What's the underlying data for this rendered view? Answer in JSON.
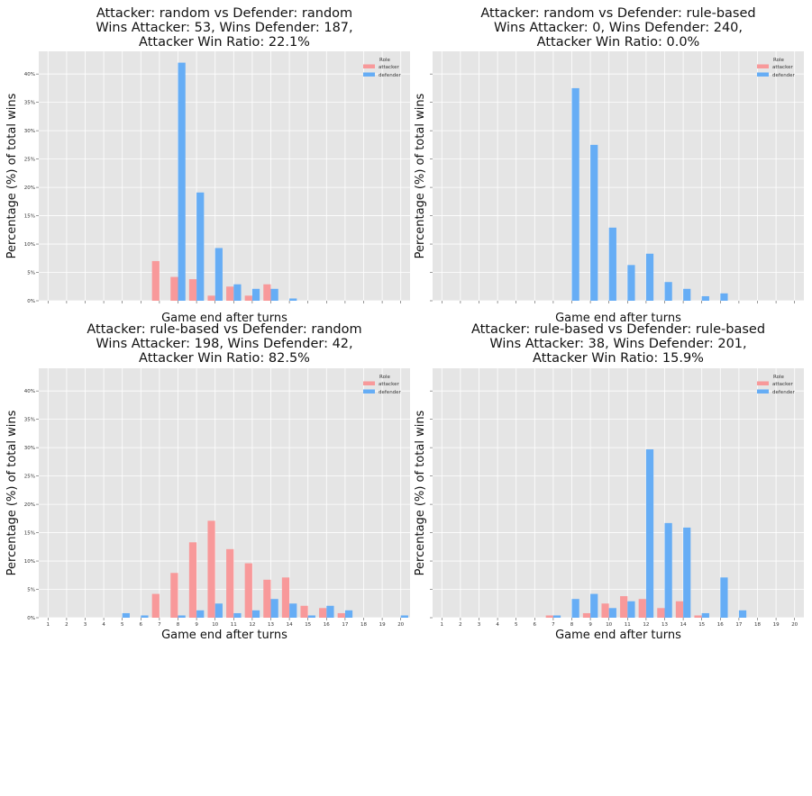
{
  "colors": {
    "attacker": "#f8999a",
    "defender": "#66adf5",
    "plot_bg": "#e5e5e5",
    "grid": "#ffffff"
  },
  "chart_data": [
    {
      "type": "bar",
      "title_lines": [
        "Attacker: random vs Defender: random",
        "Wins Attacker: 53, Wins Defender: 187,",
        "Attacker Win Ratio: 22.1%"
      ],
      "xlabel": "Game end after turns",
      "ylabel": "Percentage (%) of total wins",
      "ylim": [
        0,
        44
      ],
      "yticks": [
        "0%",
        "5%",
        "10%",
        "15%",
        "20%",
        "25%",
        "30%",
        "35%",
        "40%"
      ],
      "show_ytick_labels": true,
      "show_xtick_labels": false,
      "categories": [
        "1",
        "2",
        "3",
        "4",
        "5",
        "6",
        "7",
        "8",
        "9",
        "10",
        "11",
        "12",
        "13",
        "14",
        "15",
        "16",
        "17",
        "18",
        "19",
        "20"
      ],
      "legend": {
        "title": "Role",
        "position": "top-right",
        "entries": [
          "attacker",
          "defender"
        ]
      },
      "grid": true,
      "series": [
        {
          "name": "attacker",
          "values": [
            0,
            0,
            0,
            0,
            0,
            0,
            7.0,
            4.2,
            3.8,
            0.9,
            2.5,
            0.9,
            2.9,
            0,
            0,
            0,
            0,
            0,
            0,
            0
          ]
        },
        {
          "name": "defender",
          "values": [
            0,
            0,
            0,
            0,
            0,
            0,
            0,
            42.0,
            19.1,
            9.3,
            2.9,
            2.1,
            2.1,
            0.4,
            0,
            0,
            0,
            0,
            0,
            0
          ]
        }
      ]
    },
    {
      "type": "bar",
      "title_lines": [
        "Attacker: random vs Defender: rule-based",
        "Wins Attacker: 0, Wins Defender: 240,",
        "Attacker Win Ratio: 0.0%"
      ],
      "xlabel": "Game end after turns",
      "ylabel": "Percentage (%) of total wins",
      "ylim": [
        0,
        44
      ],
      "yticks": [
        "0%",
        "5%",
        "10%",
        "15%",
        "20%",
        "25%",
        "30%",
        "35%",
        "40%"
      ],
      "show_ytick_labels": false,
      "show_xtick_labels": false,
      "categories": [
        "1",
        "2",
        "3",
        "4",
        "5",
        "6",
        "7",
        "8",
        "9",
        "10",
        "11",
        "12",
        "13",
        "14",
        "15",
        "16",
        "17",
        "18",
        "19",
        "20"
      ],
      "legend": {
        "title": "Role",
        "position": "top-right",
        "entries": [
          "attacker",
          "defender"
        ]
      },
      "grid": true,
      "series": [
        {
          "name": "attacker",
          "values": [
            0,
            0,
            0,
            0,
            0,
            0,
            0,
            0,
            0,
            0,
            0,
            0,
            0,
            0,
            0,
            0,
            0,
            0,
            0,
            0
          ]
        },
        {
          "name": "defender",
          "values": [
            0,
            0,
            0,
            0,
            0,
            0,
            0,
            37.5,
            27.5,
            12.9,
            6.3,
            8.3,
            3.3,
            2.1,
            0.8,
            1.3,
            0,
            0,
            0,
            0
          ]
        }
      ]
    },
    {
      "type": "bar",
      "title_lines": [
        "Attacker: rule-based vs Defender: random",
        "Wins Attacker: 198, Wins Defender: 42,",
        "Attacker Win Ratio: 82.5%"
      ],
      "xlabel": "Game end after turns",
      "ylabel": "Percentage (%) of total wins",
      "ylim": [
        0,
        44
      ],
      "yticks": [
        "0%",
        "5%",
        "10%",
        "15%",
        "20%",
        "25%",
        "30%",
        "35%",
        "40%"
      ],
      "show_ytick_labels": true,
      "show_xtick_labels": true,
      "categories": [
        "1",
        "2",
        "3",
        "4",
        "5",
        "6",
        "7",
        "8",
        "9",
        "10",
        "11",
        "12",
        "13",
        "14",
        "15",
        "16",
        "17",
        "18",
        "19",
        "20"
      ],
      "legend": {
        "title": "Role",
        "position": "top-right",
        "entries": [
          "attacker",
          "defender"
        ]
      },
      "grid": true,
      "series": [
        {
          "name": "attacker",
          "values": [
            0,
            0,
            0,
            0,
            0,
            0,
            4.2,
            7.9,
            13.3,
            17.1,
            12.1,
            9.6,
            6.7,
            7.1,
            2.1,
            1.7,
            0.8,
            0,
            0,
            0
          ]
        },
        {
          "name": "defender",
          "values": [
            0,
            0,
            0,
            0,
            0.8,
            0.4,
            0,
            0.4,
            1.3,
            2.5,
            0.8,
            1.3,
            3.3,
            2.5,
            0.4,
            2.1,
            1.3,
            0,
            0,
            0.4
          ]
        }
      ]
    },
    {
      "type": "bar",
      "title_lines": [
        "Attacker: rule-based vs Defender: rule-based",
        "Wins Attacker: 38, Wins Defender: 201,",
        "Attacker Win Ratio: 15.9%"
      ],
      "xlabel": "Game end after turns",
      "ylabel": "Percentage (%) of total wins",
      "ylim": [
        0,
        44
      ],
      "yticks": [
        "0%",
        "5%",
        "10%",
        "15%",
        "20%",
        "25%",
        "30%",
        "35%",
        "40%"
      ],
      "show_ytick_labels": false,
      "show_xtick_labels": true,
      "categories": [
        "1",
        "2",
        "3",
        "4",
        "5",
        "6",
        "7",
        "8",
        "9",
        "10",
        "11",
        "12",
        "13",
        "14",
        "15",
        "16",
        "17",
        "18",
        "19",
        "20"
      ],
      "legend": {
        "title": "Role",
        "position": "top-right",
        "entries": [
          "attacker",
          "defender"
        ]
      },
      "grid": true,
      "series": [
        {
          "name": "attacker",
          "values": [
            0,
            0,
            0,
            0,
            0,
            0,
            0.4,
            0,
            0.8,
            2.5,
            3.8,
            3.3,
            1.7,
            2.9,
            0.4,
            0,
            0,
            0,
            0,
            0
          ]
        },
        {
          "name": "defender",
          "values": [
            0,
            0,
            0,
            0,
            0,
            0,
            0.4,
            3.3,
            4.2,
            1.7,
            2.9,
            29.7,
            16.7,
            15.9,
            0.8,
            7.1,
            1.3,
            0,
            0,
            0
          ]
        }
      ]
    }
  ]
}
